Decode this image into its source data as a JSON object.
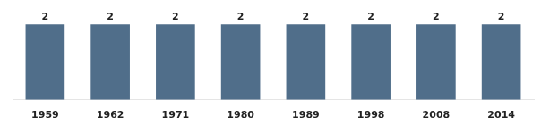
{
  "chart_data": {
    "type": "bar",
    "categories": [
      "1959",
      "1962",
      "1971",
      "1980",
      "1989",
      "1998",
      "2008",
      "2014"
    ],
    "values": [
      2,
      2,
      2,
      2,
      2,
      2,
      2,
      2
    ],
    "color": "#506e8a",
    "ylim": [
      0,
      2.5
    ],
    "grid": false,
    "legend": false,
    "data_labels": true,
    "tick_labels": "x"
  }
}
